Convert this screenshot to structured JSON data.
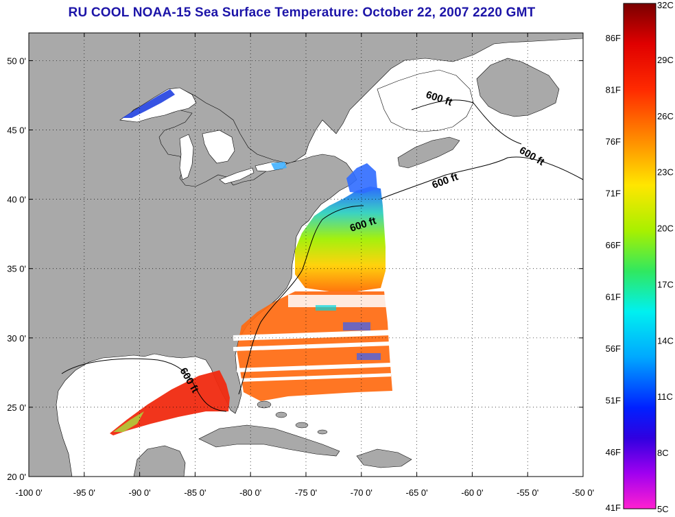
{
  "title": "RU COOL  NOAA-15  Sea Surface Temperature:  October 22, 2007 2220 GMT",
  "map": {
    "lon_range": [
      -100,
      -50
    ],
    "lat_range": [
      20,
      52
    ],
    "x_ticks": [
      "-100 0'",
      "-95 0'",
      "-90 0'",
      "-85 0'",
      "-80 0'",
      "-75 0'",
      "-70 0'",
      "-65 0'",
      "-60 0'",
      "-55 0'",
      "-50 0'"
    ],
    "y_ticks": [
      "50 0'",
      "45 0'",
      "40 0'",
      "35 0'",
      "30 0'",
      "25 0'",
      "20 0'"
    ],
    "land_color": "#a9a9a9",
    "ocean_color": "#ffffff",
    "contour_labels": [
      "600 ft",
      "600 ft",
      "600 ft",
      "600 ft",
      "600 ft"
    ]
  },
  "colorbar": {
    "celsius_labels": [
      "32C",
      "29C",
      "26C",
      "23C",
      "20C",
      "17C",
      "14C",
      "11C",
      "8C",
      "5C"
    ],
    "fahrenheit_labels": [
      "86F",
      "81F",
      "76F",
      "71F",
      "66F",
      "61F",
      "56F",
      "51F",
      "46F",
      "41F"
    ]
  }
}
